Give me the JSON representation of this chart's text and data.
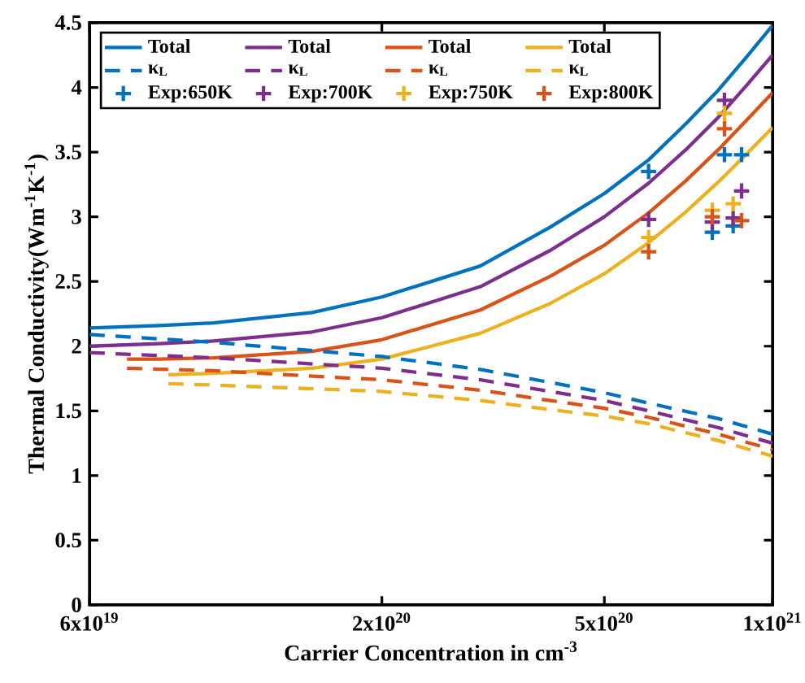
{
  "chart_data": {
    "type": "line",
    "xlabel": "Carrier Concentration in cm$^{-3}$",
    "ylabel": "Thermal Conductivity(Wm$^{-1}$K$^{-1}$)",
    "log": "x",
    "xlim": [
      6e+19,
      1e+21
    ],
    "ylim": [
      0,
      4.5
    ],
    "xticks": [
      {
        "value": 6e+19,
        "label": "6x10$^{19}$"
      },
      {
        "value": 2e+20,
        "label": "2x10$^{20}$"
      },
      {
        "value": 5e+20,
        "label": "5x10$^{20}$"
      },
      {
        "value": 1e+21,
        "label": "1x10$^{21}$"
      }
    ],
    "yticks": [
      0,
      0.5,
      1,
      1.5,
      2,
      2.5,
      3,
      3.5,
      4,
      4.5
    ],
    "legend": "top left",
    "marker": "none",
    "line_style": "solid",
    "series": [
      {
        "name": "Total",
        "color": "#0072bd",
        "x": [
          6e+19,
          8e+19,
          1e+20,
          1.5e+20,
          2e+20,
          3e+20,
          4e+20,
          5e+20,
          6e+20,
          7e+20,
          8e+20,
          9e+20,
          1e+21
        ],
        "values": [
          2.14,
          2.16,
          2.18,
          2.26,
          2.38,
          2.62,
          2.92,
          3.18,
          3.44,
          3.72,
          3.98,
          4.24,
          4.48
        ]
      },
      {
        "name": "Total",
        "color": "#7e2f8e",
        "x": [
          6e+19,
          8e+19,
          1e+20,
          1.5e+20,
          2e+20,
          3e+20,
          4e+20,
          5e+20,
          6e+20,
          7e+20,
          8e+20,
          9e+20,
          1e+21
        ],
        "values": [
          2.0,
          2.02,
          2.04,
          2.11,
          2.22,
          2.46,
          2.74,
          3.0,
          3.26,
          3.52,
          3.77,
          4.02,
          4.25
        ]
      },
      {
        "name": "Total",
        "color": "#d95319",
        "x": [
          7e+19,
          8e+19,
          1e+20,
          1.5e+20,
          2e+20,
          3e+20,
          4e+20,
          5e+20,
          6e+20,
          7e+20,
          8e+20,
          9e+20,
          1e+21
        ],
        "values": [
          1.9,
          1.9,
          1.91,
          1.96,
          2.05,
          2.28,
          2.54,
          2.78,
          3.03,
          3.28,
          3.52,
          3.75,
          3.96
        ]
      },
      {
        "name": "Total",
        "color": "#edb120",
        "x": [
          8.3e+19,
          1e+20,
          1.5e+20,
          2e+20,
          3e+20,
          4e+20,
          5e+20,
          6e+20,
          7e+20,
          8e+20,
          9e+20,
          1e+21
        ],
        "values": [
          1.78,
          1.79,
          1.83,
          1.9,
          2.1,
          2.33,
          2.56,
          2.8,
          3.04,
          3.27,
          3.49,
          3.69
        ]
      },
      {
        "name": "κ$_{L}$",
        "color": "#0072bd",
        "line_style": "dashed",
        "x": [
          6e+19,
          1e+20,
          2e+20,
          3e+20,
          4e+20,
          5e+20,
          6e+20,
          8e+20,
          1e+21
        ],
        "values": [
          2.09,
          2.03,
          1.92,
          1.82,
          1.72,
          1.64,
          1.56,
          1.44,
          1.32
        ]
      },
      {
        "name": "κ$_{L}$",
        "color": "#7e2f8e",
        "line_style": "dashed",
        "x": [
          6e+19,
          1e+20,
          2e+20,
          3e+20,
          4e+20,
          5e+20,
          6e+20,
          8e+20,
          1e+21
        ],
        "values": [
          1.95,
          1.91,
          1.83,
          1.74,
          1.65,
          1.58,
          1.5,
          1.37,
          1.25
        ]
      },
      {
        "name": "κ$_{L}$",
        "color": "#d95319",
        "line_style": "dashed",
        "x": [
          7e+19,
          1e+20,
          2e+20,
          3e+20,
          4e+20,
          5e+20,
          6e+20,
          8e+20,
          1e+21
        ],
        "values": [
          1.83,
          1.81,
          1.74,
          1.66,
          1.58,
          1.52,
          1.45,
          1.32,
          1.2
        ]
      },
      {
        "name": "κ$_{L}$",
        "color": "#edb120",
        "line_style": "dashed",
        "x": [
          8.3e+19,
          1e+20,
          2e+20,
          3e+20,
          4e+20,
          5e+20,
          6e+20,
          8e+20,
          1e+21
        ],
        "values": [
          1.71,
          1.7,
          1.65,
          1.58,
          1.51,
          1.46,
          1.4,
          1.27,
          1.15
        ]
      },
      {
        "name": "Exp:650K",
        "type": "scatter",
        "marker": "cross",
        "color": "#0072bd",
        "x": [
          6e+20,
          7.8e+20,
          8.2e+20,
          8.5e+20,
          8.8e+20
        ],
        "values": [
          3.35,
          2.88,
          3.48,
          2.93,
          3.48
        ]
      },
      {
        "name": "Exp:700K",
        "type": "scatter",
        "marker": "cross",
        "color": "#7e2f8e",
        "x": [
          6e+20,
          7.8e+20,
          8.2e+20,
          8.5e+20,
          8.8e+20
        ],
        "values": [
          2.98,
          2.96,
          3.9,
          2.99,
          3.2
        ]
      },
      {
        "name": "Exp:750K",
        "type": "scatter",
        "marker": "cross",
        "color": "#edb120",
        "x": [
          6e+20,
          7.8e+20,
          8.2e+20,
          8.5e+20
        ],
        "values": [
          2.84,
          3.05,
          3.8,
          3.1
        ]
      },
      {
        "name": "Exp:800K",
        "type": "scatter",
        "marker": "cross",
        "color": "#d95319",
        "x": [
          6e+20,
          7.8e+20,
          8.2e+20,
          8.8e+20
        ],
        "values": [
          2.73,
          3.0,
          3.68,
          2.97
        ]
      }
    ]
  }
}
